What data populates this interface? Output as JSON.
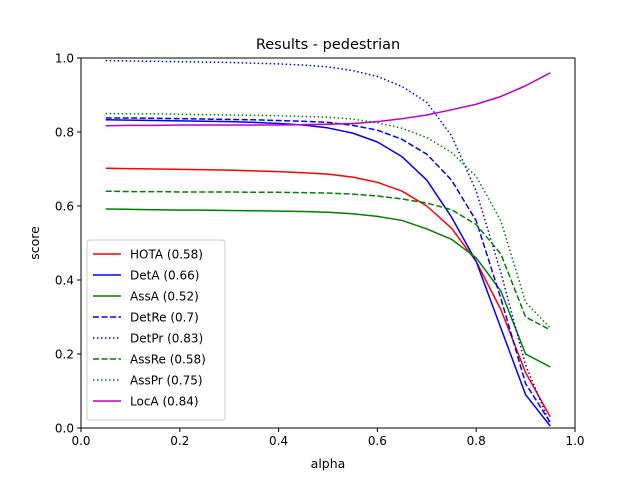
{
  "chart_data": {
    "type": "line",
    "title": "Results - pedestrian",
    "xlabel": "alpha",
    "ylabel": "score",
    "xlim": [
      0.0,
      1.0
    ],
    "ylim": [
      0.0,
      1.0
    ],
    "xticks": [
      0.0,
      0.2,
      0.4,
      0.6,
      0.8,
      1.0
    ],
    "yticks": [
      0.0,
      0.2,
      0.4,
      0.6,
      0.8,
      1.0
    ],
    "xtick_labels": [
      "0.0",
      "0.2",
      "0.4",
      "0.6",
      "0.8",
      "1.0"
    ],
    "ytick_labels": [
      "0.0",
      "0.2",
      "0.4",
      "0.6",
      "0.8",
      "1.0"
    ],
    "grid": false,
    "legend_position": "lower-left",
    "x": [
      0.05,
      0.1,
      0.15,
      0.2,
      0.25,
      0.3,
      0.35,
      0.4,
      0.45,
      0.5,
      0.55,
      0.6,
      0.65,
      0.7,
      0.75,
      0.8,
      0.85,
      0.9,
      0.95
    ],
    "series": [
      {
        "name": "HOTA (0.58)",
        "color": "#ff0000",
        "dash": "solid",
        "values": [
          0.702,
          0.701,
          0.7,
          0.699,
          0.698,
          0.697,
          0.695,
          0.693,
          0.69,
          0.686,
          0.678,
          0.664,
          0.64,
          0.6,
          0.54,
          0.45,
          0.32,
          0.15,
          0.03
        ]
      },
      {
        "name": "DetA (0.66)",
        "color": "#0000ff",
        "dash": "solid",
        "values": [
          0.833,
          0.832,
          0.831,
          0.83,
          0.829,
          0.828,
          0.826,
          0.823,
          0.819,
          0.811,
          0.797,
          0.773,
          0.733,
          0.67,
          0.57,
          0.45,
          0.27,
          0.09,
          0.005
        ]
      },
      {
        "name": "AssA (0.52)",
        "color": "#008000",
        "dash": "solid",
        "values": [
          0.592,
          0.591,
          0.59,
          0.589,
          0.589,
          0.588,
          0.587,
          0.586,
          0.585,
          0.583,
          0.579,
          0.572,
          0.561,
          0.538,
          0.51,
          0.46,
          0.37,
          0.2,
          0.165
        ]
      },
      {
        "name": "DetRe (0.7)",
        "color": "#0000ff",
        "dash": "dashed",
        "values": [
          0.838,
          0.838,
          0.837,
          0.836,
          0.835,
          0.834,
          0.833,
          0.831,
          0.829,
          0.826,
          0.818,
          0.805,
          0.78,
          0.74,
          0.67,
          0.56,
          0.35,
          0.12,
          0.015
        ]
      },
      {
        "name": "DetPr (0.83)",
        "color": "#0000ff",
        "dash": "dotted",
        "values": [
          0.993,
          0.992,
          0.991,
          0.99,
          0.989,
          0.988,
          0.986,
          0.984,
          0.981,
          0.976,
          0.966,
          0.95,
          0.923,
          0.88,
          0.79,
          0.64,
          0.42,
          0.17,
          0.01
        ]
      },
      {
        "name": "AssRe (0.58)",
        "color": "#008000",
        "dash": "dashed",
        "values": [
          0.64,
          0.639,
          0.639,
          0.638,
          0.638,
          0.638,
          0.637,
          0.637,
          0.636,
          0.635,
          0.632,
          0.627,
          0.619,
          0.608,
          0.59,
          0.55,
          0.47,
          0.3,
          0.265
        ]
      },
      {
        "name": "AssPr (0.75)",
        "color": "#008000",
        "dash": "dotted",
        "values": [
          0.85,
          0.849,
          0.849,
          0.848,
          0.847,
          0.846,
          0.845,
          0.844,
          0.842,
          0.84,
          0.835,
          0.825,
          0.81,
          0.785,
          0.745,
          0.68,
          0.56,
          0.34,
          0.27
        ]
      },
      {
        "name": "LocA (0.84)",
        "color": "#bf00bf",
        "dash": "solid",
        "values": [
          0.817,
          0.818,
          0.818,
          0.819,
          0.819,
          0.819,
          0.819,
          0.819,
          0.82,
          0.821,
          0.823,
          0.828,
          0.836,
          0.846,
          0.86,
          0.875,
          0.896,
          0.925,
          0.96
        ]
      }
    ]
  }
}
